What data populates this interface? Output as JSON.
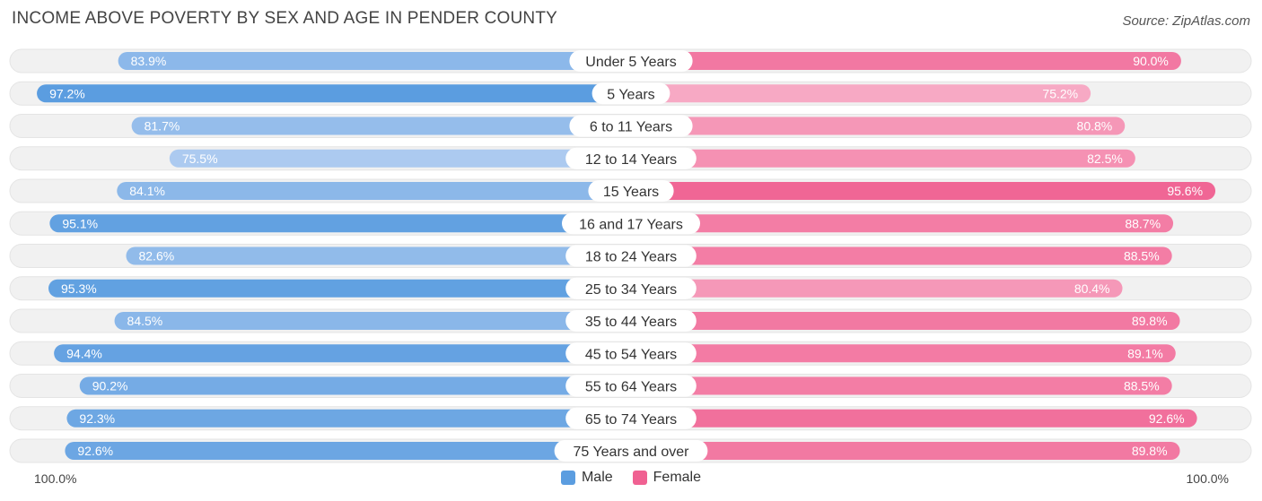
{
  "title": "INCOME ABOVE POVERTY BY SEX AND AGE IN PENDER COUNTY",
  "source": "Source: ZipAtlas.com",
  "colors": {
    "male_light": "#aecbf0",
    "male_dark": "#5b9de0",
    "female_light": "#f7aac4",
    "female_dark": "#f06192",
    "track": "#f1f1f1"
  },
  "axis": {
    "left_label": "100.0%",
    "right_label": "100.0%"
  },
  "legend": {
    "male": "Male",
    "female": "Female"
  },
  "chart_data": {
    "type": "bar",
    "orientation": "horizontal-diverging",
    "title": "INCOME ABOVE POVERTY BY SEX AND AGE IN PENDER COUNTY",
    "xlim": [
      0,
      100
    ],
    "categories": [
      "Under 5 Years",
      "5 Years",
      "6 to 11 Years",
      "12 to 14 Years",
      "15 Years",
      "16 and 17 Years",
      "18 to 24 Years",
      "25 to 34 Years",
      "35 to 44 Years",
      "45 to 54 Years",
      "55 to 64 Years",
      "65 to 74 Years",
      "75 Years and over"
    ],
    "series": [
      {
        "name": "Male",
        "values": [
          83.9,
          97.2,
          81.7,
          75.5,
          84.1,
          95.1,
          82.6,
          95.3,
          84.5,
          94.4,
          90.2,
          92.3,
          92.6
        ]
      },
      {
        "name": "Female",
        "values": [
          90.0,
          75.2,
          80.8,
          82.5,
          95.6,
          88.7,
          88.5,
          80.4,
          89.8,
          89.1,
          88.5,
          92.6,
          89.8
        ]
      }
    ],
    "value_labels": {
      "male": [
        "83.9%",
        "97.2%",
        "81.7%",
        "75.5%",
        "84.1%",
        "95.1%",
        "82.6%",
        "95.3%",
        "84.5%",
        "94.4%",
        "90.2%",
        "92.3%",
        "92.6%"
      ],
      "female": [
        "90.0%",
        "75.2%",
        "80.8%",
        "82.5%",
        "95.6%",
        "88.7%",
        "88.5%",
        "80.4%",
        "89.8%",
        "89.1%",
        "88.5%",
        "92.6%",
        "89.8%"
      ]
    }
  }
}
